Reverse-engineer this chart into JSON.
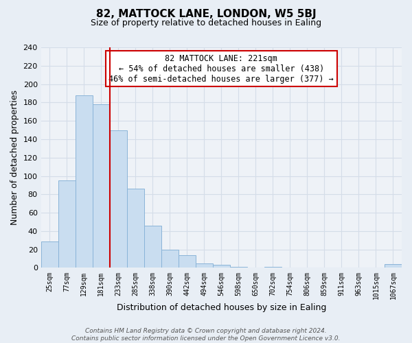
{
  "title": "82, MATTOCK LANE, LONDON, W5 5BJ",
  "subtitle": "Size of property relative to detached houses in Ealing",
  "xlabel": "Distribution of detached houses by size in Ealing",
  "ylabel": "Number of detached properties",
  "bar_labels": [
    "25sqm",
    "77sqm",
    "129sqm",
    "181sqm",
    "233sqm",
    "285sqm",
    "338sqm",
    "390sqm",
    "442sqm",
    "494sqm",
    "546sqm",
    "598sqm",
    "650sqm",
    "702sqm",
    "754sqm",
    "806sqm",
    "859sqm",
    "911sqm",
    "963sqm",
    "1015sqm",
    "1067sqm"
  ],
  "bar_values": [
    29,
    95,
    188,
    178,
    150,
    86,
    46,
    20,
    14,
    5,
    3,
    1,
    0,
    1,
    0,
    0,
    0,
    0,
    0,
    0,
    4
  ],
  "bar_color": "#c9ddf0",
  "bar_edge_color": "#8ab4d8",
  "vline_index": 4,
  "vline_color": "#cc0000",
  "ylim": [
    0,
    240
  ],
  "yticks": [
    0,
    20,
    40,
    60,
    80,
    100,
    120,
    140,
    160,
    180,
    200,
    220,
    240
  ],
  "annotation_line1": "82 MATTOCK LANE: 221sqm",
  "annotation_line2": "← 54% of detached houses are smaller (438)",
  "annotation_line3": "46% of semi-detached houses are larger (377) →",
  "annotation_box_facecolor": "#ffffff",
  "annotation_box_edgecolor": "#cc0000",
  "footer": "Contains HM Land Registry data © Crown copyright and database right 2024.\nContains public sector information licensed under the Open Government Licence v3.0.",
  "grid_color": "#d4dde8",
  "background_color": "#e8eef5",
  "plot_bg_color": "#eef2f7",
  "title_fontsize": 11,
  "subtitle_fontsize": 9,
  "ylabel_fontsize": 9,
  "xlabel_fontsize": 9,
  "tick_fontsize": 8,
  "annot_fontsize": 8.5
}
